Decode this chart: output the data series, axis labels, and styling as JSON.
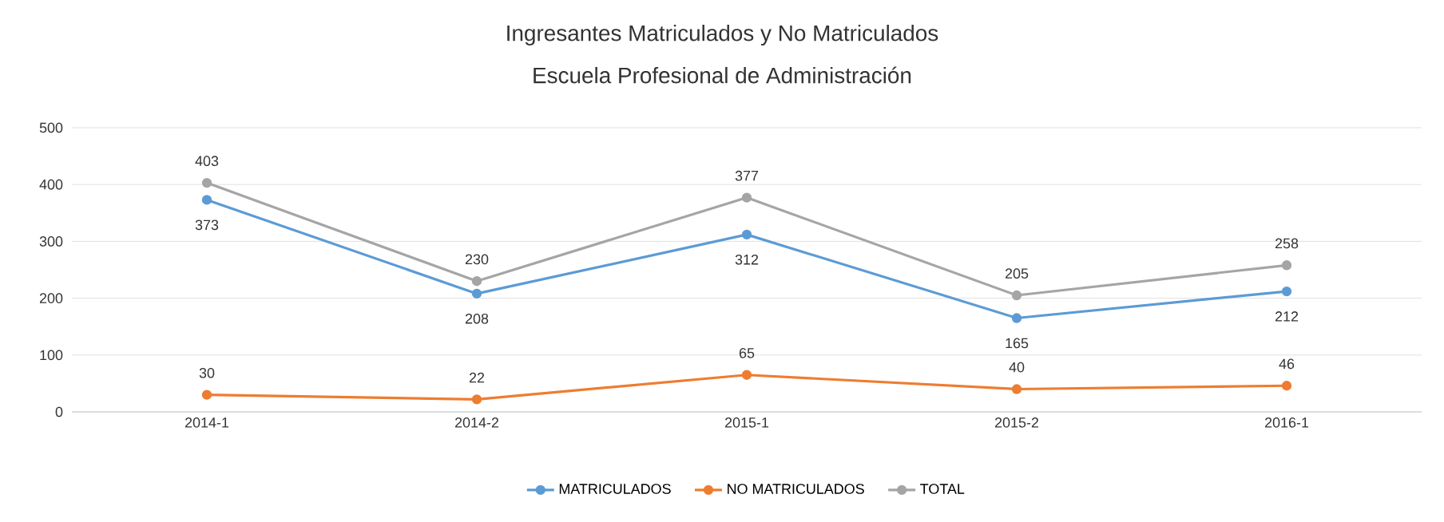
{
  "chart_data": {
    "type": "line",
    "title": "Ingresantes Matriculados y No Matriculados",
    "subtitle": "Escuela Profesional de Administración",
    "categories": [
      "2014-1",
      "2014-2",
      "2015-1",
      "2015-2",
      "2016-1"
    ],
    "series": [
      {
        "name": "MATRICULADOS",
        "color": "#5b9bd5",
        "values": [
          373,
          208,
          312,
          165,
          212
        ]
      },
      {
        "name": "NO MATRICULADOS",
        "color": "#ed7d31",
        "values": [
          30,
          22,
          65,
          40,
          46
        ]
      },
      {
        "name": "TOTAL",
        "color": "#a5a5a5",
        "values": [
          403,
          230,
          377,
          205,
          258
        ]
      }
    ],
    "ylim": [
      0,
      500
    ],
    "yticks": [
      0,
      100,
      200,
      300,
      400,
      500
    ],
    "grid": "y",
    "legend": "bottom",
    "marker": "circle",
    "line_style": "solid",
    "data_labels": true
  }
}
